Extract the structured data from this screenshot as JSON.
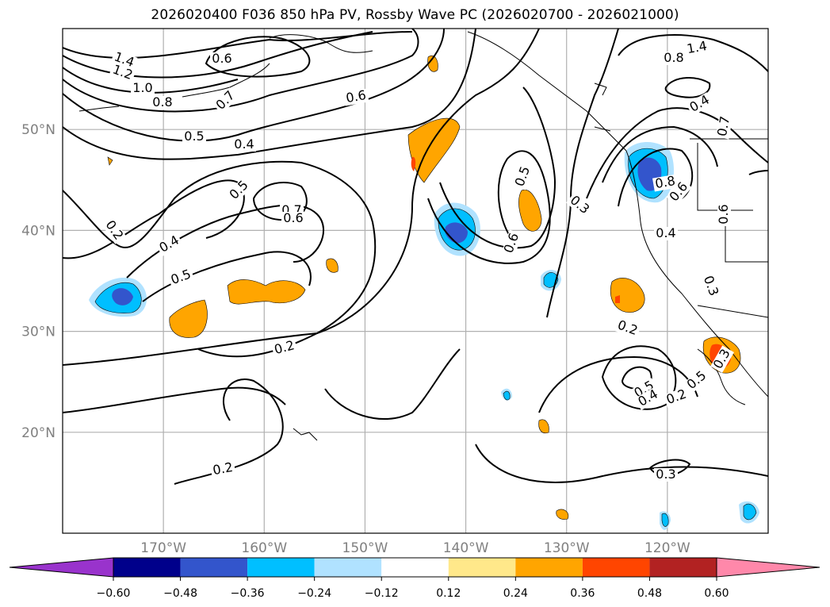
{
  "title": "2026020400 F036 850 hPa PV, Rossby Wave PC (2026020700 - 2026021000)",
  "map": {
    "projection": "PlateCarree",
    "lon_range": [
      -180,
      -110
    ],
    "lat_range": [
      10,
      60
    ],
    "gridlines": true,
    "lon_ticks": [
      {
        "lon": -170,
        "label": "170°W"
      },
      {
        "lon": -160,
        "label": "160°W"
      },
      {
        "lon": -150,
        "label": "150°W"
      },
      {
        "lon": -140,
        "label": "140°W"
      },
      {
        "lon": -130,
        "label": "130°W"
      },
      {
        "lon": -120,
        "label": "120°W"
      }
    ],
    "lat_ticks": [
      {
        "lat": 50,
        "label": "50°N"
      },
      {
        "lat": 40,
        "label": "40°N"
      },
      {
        "lat": 30,
        "label": "30°N"
      },
      {
        "lat": 20,
        "label": "20°N"
      }
    ],
    "contour_labels": [
      "1.4",
      "1.2",
      "1.0",
      "0.8",
      "0.7",
      "0.6",
      "0.6",
      "0.5",
      "0.4",
      "0.5",
      "0.7",
      "0.6",
      "0.4",
      "0.5",
      "0.2",
      "0.2",
      "0.2",
      "0.5",
      "0.6",
      "0.3",
      "0.4",
      "0.5",
      "0.3",
      "0.2",
      "0.3",
      "0.5",
      "0.4",
      "0.2",
      "0.3",
      "1.4",
      "0.8",
      "0.4",
      "0.7",
      "0.8",
      "0.6",
      "0.6"
    ]
  },
  "colorbar": {
    "extend": "both",
    "colors": [
      "#9933cc",
      "#00008b",
      "#3355cc",
      "#00bfff",
      "#b0e2ff",
      "#ffffff",
      "#ffe88a",
      "#ffa500",
      "#ff4500",
      "#b22222",
      "#ff88aa"
    ],
    "ticks": [
      "−0.60",
      "−0.48",
      "−0.36",
      "−0.24",
      "−0.12",
      "0.12",
      "0.24",
      "0.36",
      "0.48",
      "0.60"
    ]
  }
}
